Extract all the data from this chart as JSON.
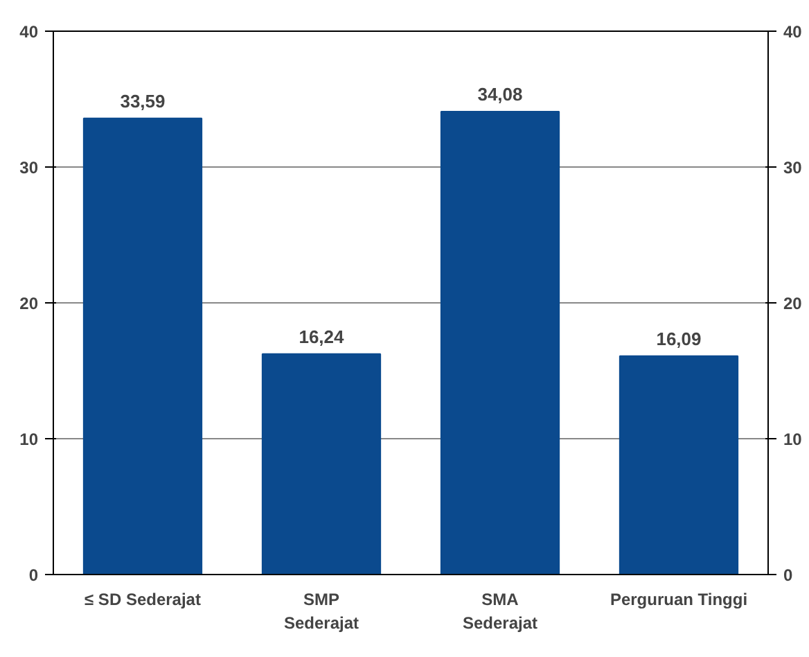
{
  "chart_data": {
    "type": "bar",
    "categories": [
      "≤ SD Sederajat",
      "SMP\nSederajat",
      "SMA\nSederajat",
      "Perguruan Tinggi"
    ],
    "values": [
      33.59,
      16.24,
      34.08,
      16.09
    ],
    "value_labels": [
      "33,59",
      "16,24",
      "34,08",
      "16,09"
    ],
    "color": "#0b4a8e",
    "ylim": [
      0,
      40
    ],
    "yticks": [
      0,
      10,
      20,
      30,
      40
    ],
    "y2lim": [
      0,
      40
    ],
    "y2ticks": [
      0,
      10,
      20,
      30,
      40
    ],
    "grid": "y"
  }
}
